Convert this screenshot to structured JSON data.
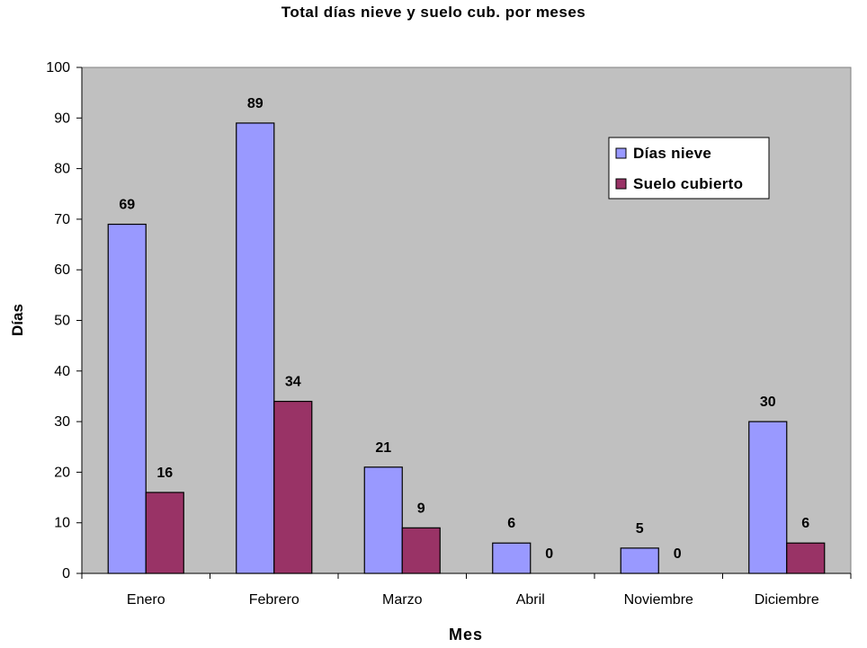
{
  "chart_data": {
    "type": "bar",
    "title": "Total días nieve y suelo cub. por meses",
    "xlabel": "Mes",
    "ylabel": "Días",
    "categories": [
      "Enero",
      "Febrero",
      "Marzo",
      "Abril",
      "Noviembre",
      "Diciembre"
    ],
    "series": [
      {
        "name": "Días nieve",
        "values": [
          69,
          89,
          21,
          6,
          5,
          30
        ],
        "color": "#9999FF"
      },
      {
        "name": "Suelo cubierto",
        "values": [
          16,
          34,
          9,
          0,
          0,
          6
        ],
        "color": "#993366"
      }
    ],
    "ylim": [
      0,
      100
    ],
    "yticks": [
      0,
      10,
      20,
      30,
      40,
      50,
      60,
      70,
      80,
      90,
      100
    ],
    "plot_background": "#C0C0C0",
    "grid": false,
    "legend_position": "top-right"
  }
}
